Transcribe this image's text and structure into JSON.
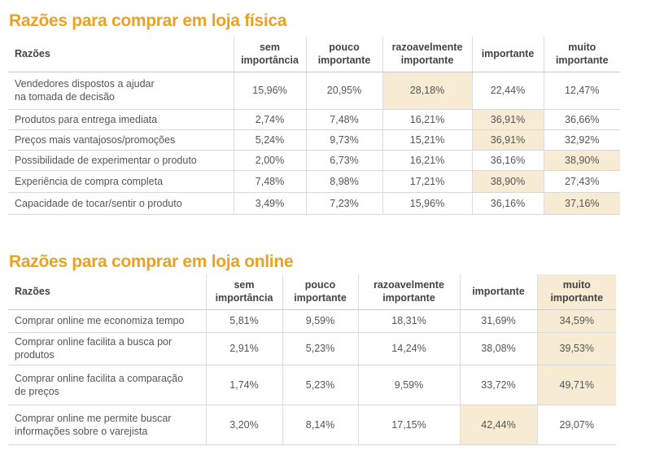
{
  "highlight_color": "#f8ebd3",
  "title_color": "#e9a224",
  "tables": [
    {
      "title": "Razões para comprar em loja física",
      "headers": [
        "Razões",
        "sem importância",
        "pouco importante",
        "razoavelmente importante",
        "importante",
        "muito importante"
      ],
      "rows": [
        {
          "label": "Vendedores dispostos a ajudar na tomada de decisão",
          "values": [
            "15,96%",
            "20,95%",
            "28,18%",
            "22,44%",
            "12,47%"
          ],
          "highlight": 2
        },
        {
          "label": "Produtos para entrega imediata",
          "values": [
            "2,74%",
            "7,48%",
            "16,21%",
            "36,91%",
            "36,66%"
          ],
          "highlight": 3
        },
        {
          "label": "Preços mais vantajosos/promoções",
          "values": [
            "5,24%",
            "9,73%",
            "15,21%",
            "36,91%",
            "32,92%"
          ],
          "highlight": 3
        },
        {
          "label": "Possibilidade de experimentar o produto",
          "values": [
            "2,00%",
            "6,73%",
            "16,21%",
            "36,16%",
            "38,90%"
          ],
          "highlight": 4
        },
        {
          "label": "Experiência de compra completa",
          "values": [
            "7,48%",
            "8,98%",
            "17,21%",
            "38,90%",
            "27,43%"
          ],
          "highlight": 3
        },
        {
          "label": "Capacidade de tocar/sentir o produto",
          "values": [
            "3,49%",
            "7,23%",
            "15,96%",
            "36,16%",
            "37,16%"
          ],
          "highlight": 4
        }
      ]
    },
    {
      "title": "Razões para comprar em loja online",
      "headers": [
        "Razões",
        "sem importância",
        "pouco importante",
        "razoavelmente importante",
        "importante",
        "muito importante"
      ],
      "rows": [
        {
          "label": "Comprar online me economiza tempo",
          "values": [
            "5,81%",
            "9,59%",
            "18,31%",
            "31,69%",
            "34,59%"
          ],
          "highlight": 4
        },
        {
          "label": "Comprar online facilita a busca por produtos",
          "values": [
            "2,91%",
            "5,23%",
            "14,24%",
            "38,08%",
            "39,53%"
          ],
          "highlight": 4
        },
        {
          "label": "Comprar online facilita a comparação de preços",
          "values": [
            "1,74%",
            "5,23%",
            "9,59%",
            "33,72%",
            "49,71%"
          ],
          "highlight": 4
        },
        {
          "label": "Comprar online me permite buscar informações sobre o varejista",
          "values": [
            "3,20%",
            "8,14%",
            "17,15%",
            "42,44%",
            "29,07%"
          ],
          "highlight": 3
        }
      ]
    }
  ]
}
